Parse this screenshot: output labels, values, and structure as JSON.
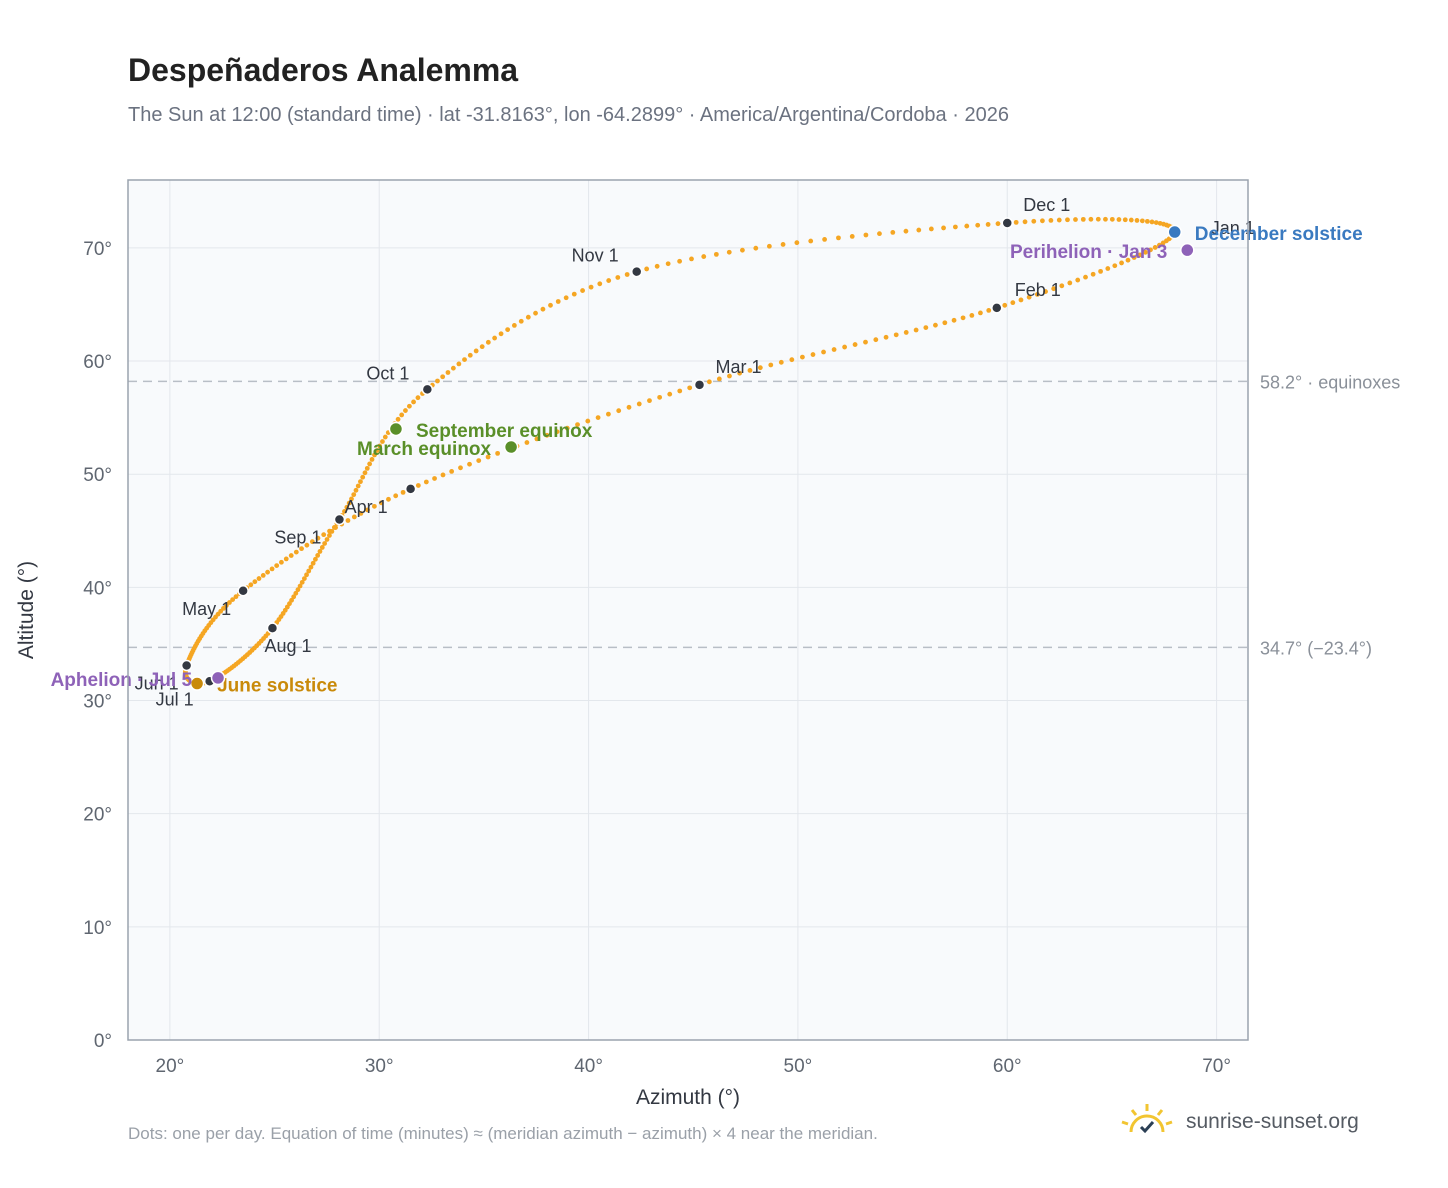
{
  "header": {
    "title": "Despeñaderos Analemma",
    "subtitle": "The Sun at 12:00 (standard time) · lat -31.8163°, lon -64.2899° · America/Argentina/Cordoba · 2026"
  },
  "footer": {
    "note": "Dots: one per day. Equation of time (minutes) ≈ (meridian azimuth − azimuth) × 4 near the meridian.",
    "brand": "sunrise-sunset.org",
    "brand_icon": "sun-icon"
  },
  "colors": {
    "path": "#f5a623",
    "month_dot": "#333842",
    "equinox": "#5a8f29",
    "december_solstice": "#3a7ac0",
    "june_solstice": "#c98a0a",
    "apsis": "#8e62b8",
    "reference_line": "#b8bec6",
    "grid": "#e3e7ec",
    "plot_bg": "#f8fafc",
    "frame": "#9aa3ae"
  },
  "chart_data": {
    "type": "scatter",
    "xlabel": "Azimuth (°)",
    "ylabel": "Altitude (°)",
    "xlim": [
      18,
      71.5
    ],
    "ylim": [
      0,
      76
    ],
    "xticks": [
      "20°",
      "30°",
      "40°",
      "50°",
      "60°",
      "70°"
    ],
    "yticks": [
      "0°",
      "10°",
      "20°",
      "30°",
      "40°",
      "50°",
      "60°",
      "70°"
    ],
    "grid": true,
    "reference_lines": [
      {
        "y": 58.2,
        "label": "58.2° · equinoxes"
      },
      {
        "y": 34.7,
        "label": "34.7° (−23.4°)"
      }
    ],
    "month_points": [
      {
        "label": "Jan 1",
        "az": 68.0,
        "alt": 71.4
      },
      {
        "label": "Feb 1",
        "az": 59.5,
        "alt": 64.7
      },
      {
        "label": "Mar 1",
        "az": 45.3,
        "alt": 57.9
      },
      {
        "label": "Apr 1",
        "az": 31.5,
        "alt": 48.7
      },
      {
        "label": "May 1",
        "az": 23.5,
        "alt": 39.7
      },
      {
        "label": "Jun 1",
        "az": 20.8,
        "alt": 33.1
      },
      {
        "label": "Jul 1",
        "az": 21.9,
        "alt": 31.7
      },
      {
        "label": "Aug 1",
        "az": 24.9,
        "alt": 36.4
      },
      {
        "label": "Sep 1",
        "az": 28.1,
        "alt": 46.0
      },
      {
        "label": "Oct 1",
        "az": 32.3,
        "alt": 57.5
      },
      {
        "label": "Nov 1",
        "az": 42.3,
        "alt": 67.9
      },
      {
        "label": "Dec 1",
        "az": 60.0,
        "alt": 72.2
      }
    ],
    "events": [
      {
        "label": "March equinox",
        "az": 36.3,
        "alt": 52.4,
        "kind": "equinox"
      },
      {
        "label": "September equinox",
        "az": 30.8,
        "alt": 54.0,
        "kind": "equinox"
      },
      {
        "label": "June solstice",
        "az": 21.3,
        "alt": 31.5,
        "kind": "june_solstice"
      },
      {
        "label": "December solstice",
        "az": 68.0,
        "alt": 71.4,
        "kind": "december_solstice"
      },
      {
        "label": "Aphelion · Jul 5",
        "az": 22.3,
        "alt": 32.0,
        "kind": "apsis"
      },
      {
        "label": "Perihelion · Jan 3",
        "az": 68.6,
        "alt": 69.8,
        "kind": "apsis"
      }
    ]
  }
}
